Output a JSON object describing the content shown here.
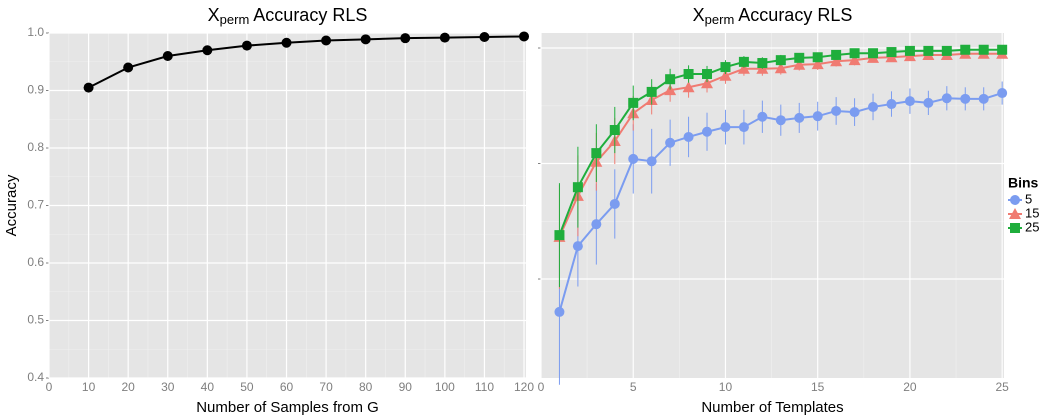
{
  "chart_data": [
    {
      "type": "line",
      "title": {
        "base": "X",
        "sub": "perm",
        "rest": "Accuracy RLS"
      },
      "x_label": "Number of Samples from G",
      "y_label": "Accuracy",
      "x": [
        10,
        20,
        30,
        40,
        50,
        60,
        70,
        80,
        90,
        100,
        110,
        120
      ],
      "series": [
        {
          "color": "#000000",
          "marker": "circle",
          "values": [
            0.905,
            0.94,
            0.96,
            0.97,
            0.978,
            0.983,
            0.987,
            0.989,
            0.991,
            0.992,
            0.993,
            0.994
          ]
        }
      ],
      "xlim": [
        0,
        120.5
      ],
      "xticks": [
        0,
        10,
        20,
        30,
        40,
        50,
        60,
        70,
        80,
        90,
        100,
        110,
        120
      ],
      "ylim": [
        0.4,
        1.0
      ],
      "yticks": [
        0.4,
        0.5,
        0.6,
        0.7,
        0.8,
        0.9,
        {
          "value": 1.0,
          "label": "1.0"
        }
      ],
      "grid": true
    },
    {
      "type": "line",
      "title": {
        "base": "X",
        "sub": "perm",
        "rest": "Accuracy RLS"
      },
      "x_label": "Number of Templates",
      "x": [
        1,
        2,
        3,
        4,
        5,
        6,
        7,
        8,
        9,
        10,
        11,
        12,
        13,
        14,
        15,
        16,
        17,
        18,
        19,
        20,
        21,
        22,
        23,
        24,
        25
      ],
      "series": [
        {
          "name": "5",
          "color": "#7b9cf0",
          "marker": "circle",
          "values": [
            0.543,
            0.657,
            0.695,
            0.73,
            0.808,
            0.804,
            0.836,
            0.846,
            0.855,
            0.863,
            0.863,
            0.881,
            0.875,
            0.879,
            0.882,
            0.891,
            0.889,
            0.898,
            0.903,
            0.908,
            0.905,
            0.913,
            0.912,
            0.912,
            0.922
          ],
          "errors": [
            0.126,
            0.07,
            0.07,
            0.06,
            0.06,
            0.056,
            0.04,
            0.035,
            0.033,
            0.03,
            0.03,
            0.028,
            0.027,
            0.026,
            0.025,
            0.024,
            0.024,
            0.023,
            0.022,
            0.022,
            0.021,
            0.021,
            0.02,
            0.02,
            0.02
          ]
        },
        {
          "name": "15",
          "color": "#f07b72",
          "marker": "triangle",
          "values": [
            0.673,
            0.744,
            0.803,
            0.839,
            0.887,
            0.91,
            0.927,
            0.932,
            0.939,
            0.952,
            0.964,
            0.964,
            0.965,
            0.971,
            0.972,
            0.977,
            0.979,
            0.983,
            0.984,
            0.986,
            0.988,
            0.988,
            0.99,
            0.99,
            0.99
          ],
          "errors": [
            0.09,
            0.07,
            0.05,
            0.04,
            0.03,
            0.025,
            0.02,
            0.018,
            0.016,
            0.014,
            0.012,
            0.012,
            0.011,
            0.01,
            0.01,
            0.009,
            0.009,
            0.008,
            0.008,
            0.007,
            0.007,
            0.007,
            0.006,
            0.006,
            0.006
          ]
        },
        {
          "name": "25",
          "color": "#1fae3c",
          "marker": "square",
          "values": [
            0.676,
            0.759,
            0.818,
            0.858,
            0.905,
            0.924,
            0.946,
            0.955,
            0.955,
            0.967,
            0.976,
            0.974,
            0.979,
            0.983,
            0.984,
            0.988,
            0.991,
            0.991,
            0.993,
            0.995,
            0.995,
            0.995,
            0.997,
            0.997,
            0.997
          ],
          "errors": [
            0.09,
            0.07,
            0.05,
            0.04,
            0.03,
            0.022,
            0.018,
            0.015,
            0.014,
            0.012,
            0.01,
            0.01,
            0.009,
            0.008,
            0.008,
            0.007,
            0.006,
            0.006,
            0.006,
            0.005,
            0.005,
            0.005,
            0.004,
            0.004,
            0.004
          ]
        }
      ],
      "xlim": [
        0,
        25.1
      ],
      "xticks": [
        0,
        5,
        10,
        15,
        20,
        25
      ],
      "ylim": [
        0.4286,
        1.026
      ],
      "yticks": [
        0.6,
        0.8,
        1.0
      ],
      "ytick_labels": false,
      "grid": true,
      "legend_title": "Bins",
      "legend": "right"
    }
  ]
}
